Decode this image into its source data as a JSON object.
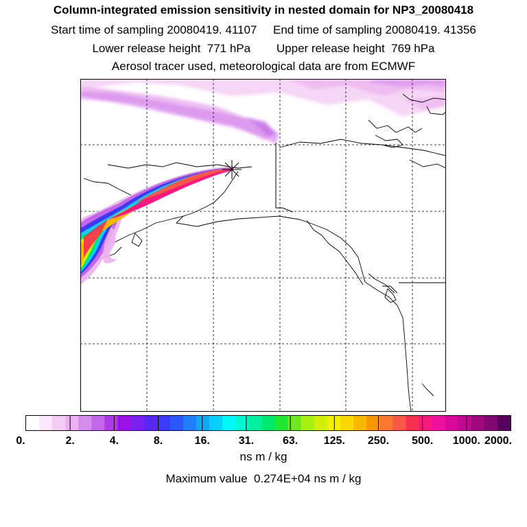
{
  "header": {
    "title": "Column-integrated emission sensitivity in nested domain for NP3_20080418",
    "start_label": "Start time of sampling",
    "start_value": "20080419. 41107",
    "end_label": "End time of sampling",
    "end_value": "20080419. 41356",
    "lower_label": "Lower release height",
    "lower_value": "771 hPa",
    "upper_label": "Upper release height",
    "upper_value": "769 hPa",
    "info": "Aerosol tracer used, meteorological data are from ECMWF"
  },
  "colorbar": {
    "tick_labels": [
      "0.",
      "2.",
      "4.",
      "8.",
      "16.",
      "31.",
      "63.",
      "125.",
      "250.",
      "500.",
      "1000.",
      "2000."
    ],
    "unit": "ns m / kg",
    "colors": [
      "#ffffff",
      "#fbe6fb",
      "#f4ccf4",
      "#ecb0f0",
      "#d58cec",
      "#c266ea",
      "#b13ae8",
      "#9a10e6",
      "#7a20f0",
      "#5a28f4",
      "#3a3af8",
      "#2a58fa",
      "#2080fa",
      "#10a8f8",
      "#08d0f8",
      "#00f8f8",
      "#00f8d0",
      "#00f0a0",
      "#00e870",
      "#20e830",
      "#70e820",
      "#a8f010",
      "#d0f008",
      "#f0f000",
      "#f8d800",
      "#f8b800",
      "#f89800",
      "#f87830",
      "#f85848",
      "#f83050",
      "#f81880",
      "#f010a0",
      "#d80898",
      "#c00890",
      "#a00880",
      "#800870",
      "#580060"
    ]
  },
  "maximum": {
    "label": "Maximum value",
    "value": "0.274E+04",
    "unit": "ns m / kg"
  },
  "map": {
    "receptor_icon": "star-marker-icon"
  }
}
